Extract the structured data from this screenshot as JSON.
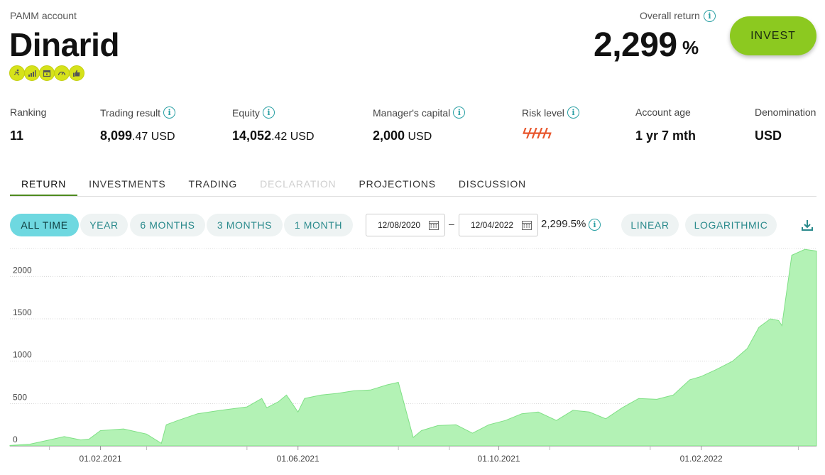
{
  "header": {
    "account_type": "PAMM account",
    "account_name": "Dinarid",
    "badges": [
      "runner-badge-icon",
      "bars-badge-icon",
      "calendar-badge-icon",
      "gauge-badge-icon",
      "thumbs-up-badge-icon"
    ],
    "badge_color": "#d6e21a",
    "overall_return_label": "Overall return",
    "overall_return_value": "2,299",
    "overall_return_unit": "%",
    "invest_label": "INVEST",
    "invest_color": "#8cc920"
  },
  "stats": {
    "ranking": {
      "label": "Ranking",
      "value": "11"
    },
    "trading_result": {
      "label": "Trading result",
      "major": "8,099",
      "minor": ".47 USD"
    },
    "equity": {
      "label": "Equity",
      "major": "14,052",
      "minor": ".42 USD"
    },
    "managers_capital": {
      "label": "Manager's capital",
      "major": "2,000",
      "minor": " USD"
    },
    "risk_level": {
      "label": "Risk level",
      "value": "ϟϟϟϟϟ",
      "color": "#e8562c"
    },
    "account_age": {
      "label": "Account age",
      "value": "1 yr 7 mth"
    },
    "denomination": {
      "label": "Denomination",
      "value": "USD"
    }
  },
  "tabs": [
    {
      "label": "RETURN",
      "state": "active"
    },
    {
      "label": "INVESTMENTS",
      "state": "normal"
    },
    {
      "label": "TRADING",
      "state": "normal"
    },
    {
      "label": "DECLARATION",
      "state": "disabled"
    },
    {
      "label": "PROJECTIONS",
      "state": "normal"
    },
    {
      "label": "DISCUSSION",
      "state": "normal"
    }
  ],
  "filters": {
    "periods": [
      "ALL TIME",
      "YEAR",
      "6 MONTHS",
      "3 MONTHS",
      "1 MONTH"
    ],
    "active_period": "ALL TIME",
    "date_from": "12/08/2020",
    "date_to": "12/04/2022",
    "range_dash": "–",
    "range_return": "2,299.5%",
    "scales": [
      "LINEAR",
      "LOGARITHMIC"
    ],
    "download_icon": "download-icon"
  },
  "chart_data": {
    "type": "area",
    "color": "#b3f2b5",
    "line_color": "#7fe085",
    "x_tick_labels": [
      "01.02.2021",
      "01.06.2021",
      "01.10.2021",
      "01.02.2022"
    ],
    "x_ticks": [
      "2021-02-01",
      "2021-06-01",
      "2021-10-01",
      "2022-02-01"
    ],
    "x_range": [
      "2020-12-08",
      "2022-04-12"
    ],
    "y_ticks": [
      0,
      500,
      1000,
      1500,
      2000
    ],
    "ylim": [
      0,
      2330
    ],
    "grid": true,
    "x": [
      "2020-12-08",
      "2020-12-20",
      "2021-01-01",
      "2021-01-10",
      "2021-01-15",
      "2021-01-20",
      "2021-01-25",
      "2021-02-01",
      "2021-02-15",
      "2021-03-01",
      "2021-03-10",
      "2021-03-13",
      "2021-03-20",
      "2021-04-01",
      "2021-04-15",
      "2021-05-01",
      "2021-05-10",
      "2021-05-13",
      "2021-05-20",
      "2021-05-25",
      "2021-06-01",
      "2021-06-05",
      "2021-06-10",
      "2021-06-15",
      "2021-06-25",
      "2021-07-05",
      "2021-07-15",
      "2021-07-25",
      "2021-08-01",
      "2021-08-10",
      "2021-08-15",
      "2021-08-25",
      "2021-09-05",
      "2021-09-15",
      "2021-09-25",
      "2021-10-05",
      "2021-10-15",
      "2021-10-25",
      "2021-11-05",
      "2021-11-15",
      "2021-11-25",
      "2021-12-05",
      "2021-12-15",
      "2021-12-25",
      "2022-01-05",
      "2022-01-15",
      "2022-01-25",
      "2022-02-01",
      "2022-02-10",
      "2022-02-20",
      "2022-03-01",
      "2022-03-08",
      "2022-03-15",
      "2022-03-20",
      "2022-03-22",
      "2022-03-28",
      "2022-04-05",
      "2022-04-12"
    ],
    "y": [
      5,
      20,
      70,
      110,
      90,
      70,
      80,
      180,
      200,
      140,
      30,
      250,
      300,
      380,
      420,
      460,
      560,
      450,
      520,
      600,
      400,
      560,
      580,
      600,
      620,
      650,
      660,
      720,
      750,
      100,
      180,
      240,
      250,
      150,
      250,
      300,
      380,
      400,
      300,
      420,
      400,
      320,
      450,
      560,
      550,
      600,
      780,
      820,
      900,
      1000,
      1150,
      1400,
      1500,
      1480,
      1420,
      2250,
      2320,
      2300
    ]
  }
}
